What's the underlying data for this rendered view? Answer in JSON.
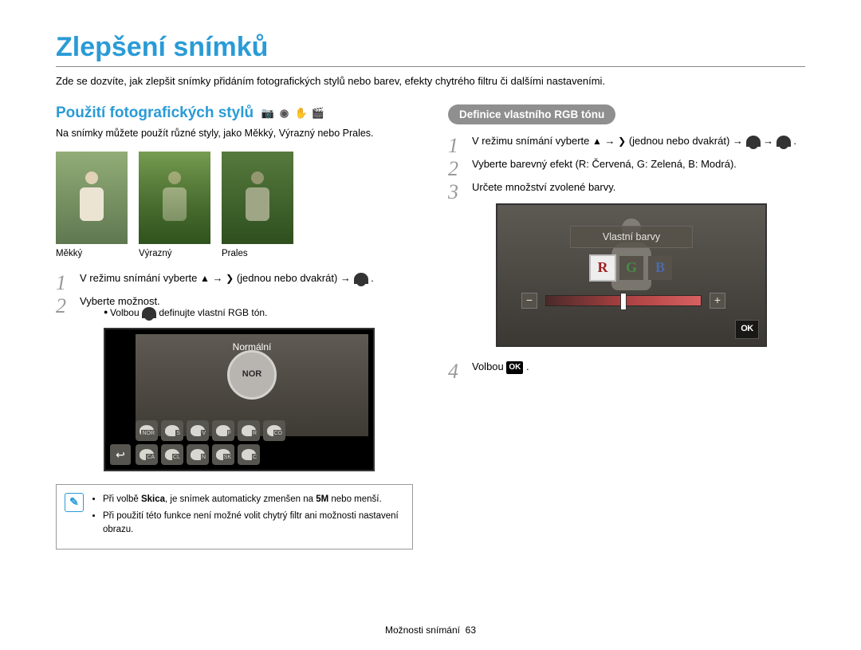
{
  "title": "Zlepšení snímků",
  "intro": "Zde se dozvíte, jak zlepšit snímky přidáním fotografických stylů nebo barev, efekty chytrého filtru či dalšími nastaveními.",
  "left": {
    "heading": "Použití fotografických stylů",
    "desc": "Na snímky můžete použít různé styly, jako Měkký, Výrazný nebo Prales.",
    "captions": {
      "soft": "Měkký",
      "vivid": "Výrazný",
      "forest": "Prales"
    },
    "step1_pre": "V režimu snímání vyberte ",
    "step1_mid": " (jednou nebo dvakrát) → ",
    "step2": "Vyberte možnost.",
    "bullet1_pre": "Volbou ",
    "bullet1_post": " definujte vlastní RGB tón.",
    "screen_label": "Normální",
    "nor": "NOR",
    "icon_labels": [
      "NOR",
      "S",
      "V",
      "F",
      "R",
      "CO",
      "CA",
      "CL",
      "N",
      "SK",
      "C"
    ],
    "note1_pre": "Při volbě ",
    "note1_bold": "Skica",
    "note1_post": ", je snímek automaticky zmenšen na ",
    "note1_size": "5M",
    "note1_end": " nebo menší.",
    "note2": "Při použití této funkce není možné volit chytrý filtr ani možnosti nastavení obrazu."
  },
  "right": {
    "pill": "Definice vlastního RGB tónu",
    "step1_pre": "V režimu snímání vyberte ",
    "step1_mid": " (jednou nebo dvakrát) → ",
    "step2": "Vyberte barevný efekt (R: Červená, G: Zelená, B: Modrá).",
    "step3": "Určete množství zvolené barvy.",
    "screen_title": "Vlastní barvy",
    "rgb": {
      "r": "R",
      "g": "G",
      "b": "B"
    },
    "minus": "−",
    "plus": "+",
    "ok": "OK",
    "step4_pre": "Volbou "
  },
  "footer": {
    "section": "Možnosti snímání",
    "page": "63"
  },
  "arrows": {
    "up": "▲",
    "right": "❯",
    "back": "↩"
  }
}
